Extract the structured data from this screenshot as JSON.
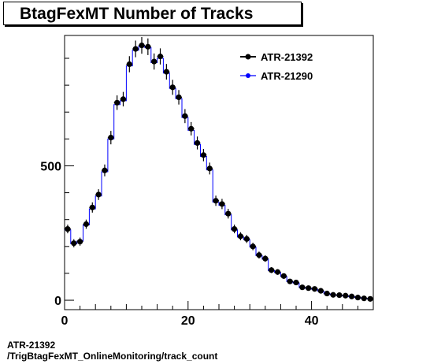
{
  "chart_data": {
    "type": "histogram",
    "title": "BtagFexMT Number of Tracks",
    "xlabel": "",
    "ylabel": "",
    "xlim": [
      0,
      50
    ],
    "ylim": [
      -35,
      985
    ],
    "x_ticks": [
      0,
      20,
      40
    ],
    "y_ticks": [
      0,
      500
    ],
    "legend": [
      "ATR-21392",
      "ATR-21290"
    ],
    "legend_position": "top-right",
    "series": [
      {
        "name": "ATR-21392",
        "style": "points",
        "color": "#000000",
        "x": [
          0.5,
          1.5,
          2.5,
          3.5,
          4.5,
          5.5,
          6.5,
          7.5,
          8.5,
          9.5,
          10.5,
          11.5,
          12.5,
          13.5,
          14.5,
          15.5,
          16.5,
          17.5,
          18.5,
          19.5,
          20.5,
          21.5,
          22.5,
          23.5,
          24.5,
          25.5,
          26.5,
          27.5,
          28.5,
          29.5,
          30.5,
          31.5,
          32.5,
          33.5,
          34.5,
          35.5,
          36.5,
          37.5,
          38.5,
          39.5,
          40.5,
          41.5,
          42.5,
          43.5,
          44.5,
          45.5,
          46.5,
          47.5,
          48.5,
          49.5
        ],
        "values": [
          265,
          212,
          218,
          283,
          345,
          393,
          483,
          605,
          735,
          748,
          878,
          935,
          948,
          943,
          888,
          907,
          850,
          792,
          755,
          685,
          638,
          585,
          540,
          490,
          370,
          358,
          322,
          265,
          238,
          228,
          200,
          168,
          155,
          112,
          105,
          90,
          70,
          66,
          48,
          45,
          42,
          35,
          25,
          20,
          19,
          17,
          14,
          10,
          7,
          5
        ],
        "errors": [
          16,
          15,
          15,
          17,
          19,
          20,
          22,
          25,
          27,
          27,
          30,
          31,
          31,
          31,
          30,
          30,
          29,
          28,
          27,
          26,
          25,
          24,
          23,
          22,
          19,
          19,
          18,
          16,
          15,
          15,
          14,
          13,
          12,
          11,
          10,
          9,
          8,
          8,
          7,
          7,
          6,
          6,
          5,
          4,
          4,
          4,
          4,
          3,
          3,
          2
        ]
      },
      {
        "name": "ATR-21290",
        "style": "step",
        "color": "#0000ff",
        "x": [
          0.5,
          1.5,
          2.5,
          3.5,
          4.5,
          5.5,
          6.5,
          7.5,
          8.5,
          9.5,
          10.5,
          11.5,
          12.5,
          13.5,
          14.5,
          15.5,
          16.5,
          17.5,
          18.5,
          19.5,
          20.5,
          21.5,
          22.5,
          23.5,
          24.5,
          25.5,
          26.5,
          27.5,
          28.5,
          29.5,
          30.5,
          31.5,
          32.5,
          33.5,
          34.5,
          35.5,
          36.5,
          37.5,
          38.5,
          39.5,
          40.5,
          41.5,
          42.5,
          43.5,
          44.5,
          45.5,
          46.5,
          47.5,
          48.5,
          49.5
        ],
        "values": [
          262,
          210,
          220,
          280,
          340,
          388,
          478,
          600,
          728,
          742,
          872,
          930,
          945,
          940,
          884,
          900,
          845,
          788,
          750,
          680,
          632,
          580,
          535,
          485,
          365,
          353,
          318,
          262,
          235,
          225,
          198,
          166,
          153,
          110,
          103,
          88,
          69,
          64,
          47,
          44,
          41,
          34,
          24,
          20,
          18,
          16,
          13,
          10,
          7,
          5
        ]
      }
    ]
  },
  "footer": {
    "line1": "ATR-21392",
    "line2": "/TrigBtagFexMT_OnlineMonitoring/track_count"
  }
}
